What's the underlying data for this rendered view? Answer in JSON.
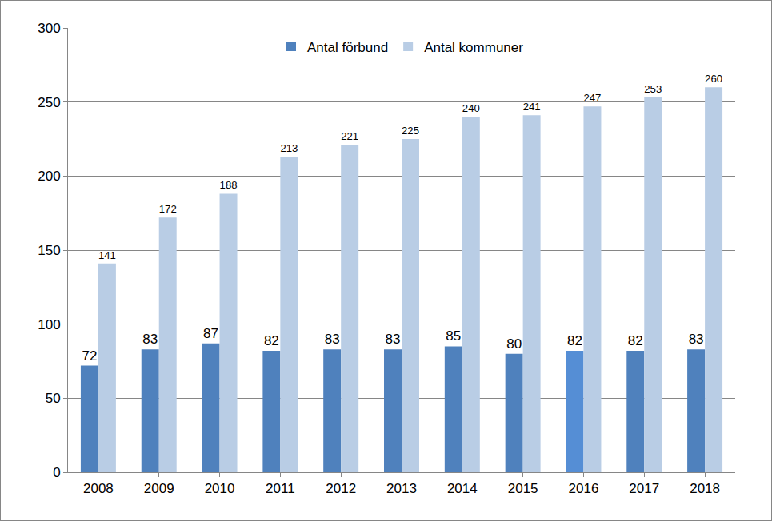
{
  "chart_data": {
    "type": "bar",
    "categories": [
      "2008",
      "2009",
      "2010",
      "2011",
      "2012",
      "2013",
      "2014",
      "2015",
      "2016",
      "2017",
      "2018"
    ],
    "series": [
      {
        "name": "Antal förbund",
        "color": "#4f81bd",
        "colors": [
          "#4f81bd",
          "#4f81bd",
          "#4f81bd",
          "#4f81bd",
          "#4f81bd",
          "#4f81bd",
          "#4f81bd",
          "#4f81bd",
          "#558ed5",
          "#4f81bd",
          "#4f81bd"
        ],
        "values": [
          72,
          83,
          87,
          82,
          83,
          83,
          85,
          80,
          82,
          82,
          83
        ]
      },
      {
        "name": "Antal kommuner",
        "color": "#b9cde5",
        "values": [
          141,
          172,
          188,
          213,
          221,
          225,
          240,
          241,
          247,
          253,
          260
        ]
      }
    ],
    "ylim": [
      0,
      300
    ],
    "yticks": [
      0,
      50,
      100,
      150,
      200,
      250,
      300
    ],
    "grid": true,
    "legend": "top",
    "data_labels": true
  }
}
